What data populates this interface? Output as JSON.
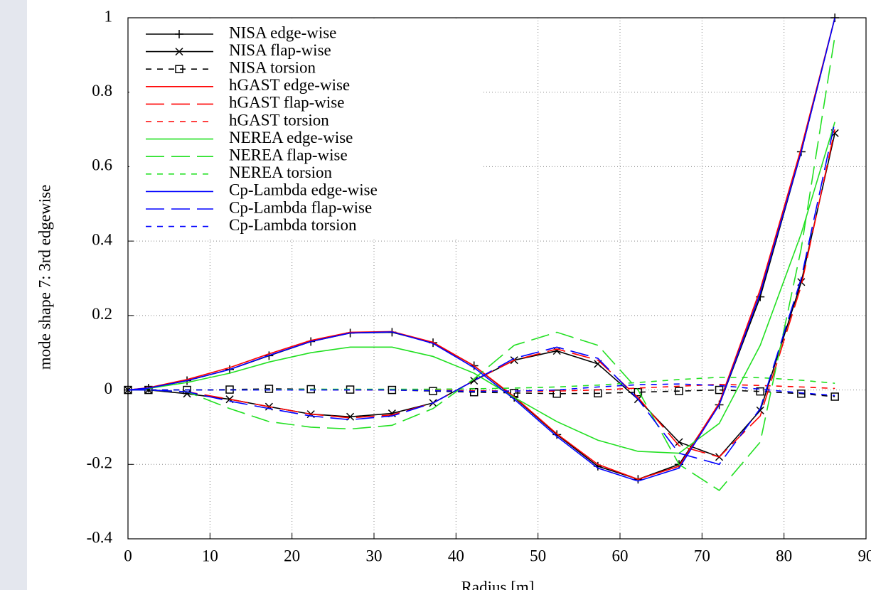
{
  "chart_data": {
    "type": "line",
    "xlabel": "Radius [m]",
    "ylabel": "mode shape 7: 3rd edgewise",
    "x": [
      0,
      2.5,
      7.2,
      12.4,
      17.2,
      22.3,
      27.1,
      32.2,
      37.2,
      42.2,
      47.1,
      52.3,
      57.3,
      62.2,
      67.2,
      72.1,
      77.1,
      82.1,
      86.2
    ],
    "xlim": [
      0,
      90
    ],
    "xticks": [
      0,
      10,
      20,
      30,
      40,
      50,
      60,
      70,
      80,
      90
    ],
    "ylim": [
      -0.4,
      1
    ],
    "yticks": [
      -0.4,
      -0.2,
      0,
      0.2,
      0.4,
      0.6,
      0.8,
      1
    ],
    "grid": true,
    "legend": "top-left",
    "series": [
      {
        "name": "NISA edge-wise",
        "color": "#000000",
        "dash": "solid",
        "marker": "plus",
        "values": [
          0,
          0.005,
          0.025,
          0.055,
          0.092,
          0.13,
          0.153,
          0.155,
          0.127,
          0.065,
          -0.02,
          -0.12,
          -0.205,
          -0.24,
          -0.2,
          -0.04,
          0.25,
          0.64,
          1.0
        ]
      },
      {
        "name": "NISA flap-wise",
        "color": "#000000",
        "dash": "solid",
        "marker": "cross",
        "values": [
          0,
          0,
          -0.01,
          -0.025,
          -0.045,
          -0.065,
          -0.072,
          -0.063,
          -0.035,
          0.025,
          0.08,
          0.105,
          0.07,
          -0.025,
          -0.14,
          -0.18,
          -0.055,
          0.29,
          0.69
        ]
      },
      {
        "name": "NISA torsion",
        "color": "#000000",
        "dash": "short",
        "marker": "square",
        "values": [
          0,
          0,
          0,
          0.001,
          0.003,
          0.002,
          0.001,
          0,
          -0.003,
          -0.006,
          -0.008,
          -0.01,
          -0.009,
          -0.006,
          -0.003,
          0,
          -0.004,
          -0.01,
          -0.018
        ]
      },
      {
        "name": "hGAST edge-wise",
        "color": "#ff0000",
        "dash": "solid",
        "values": [
          0,
          0.006,
          0.028,
          0.06,
          0.097,
          0.133,
          0.155,
          0.157,
          0.128,
          0.065,
          -0.018,
          -0.118,
          -0.2,
          -0.24,
          -0.205,
          -0.035,
          0.27,
          0.65,
          1.0
        ]
      },
      {
        "name": "hGAST flap-wise",
        "color": "#ff0000",
        "dash": "long",
        "values": [
          0,
          0,
          -0.005,
          -0.025,
          -0.045,
          -0.065,
          -0.075,
          -0.067,
          -0.035,
          0.025,
          0.08,
          0.11,
          0.08,
          -0.02,
          -0.15,
          -0.18,
          -0.07,
          0.28,
          0.7
        ]
      },
      {
        "name": "hGAST torsion",
        "color": "#ff0000",
        "dash": "short",
        "values": [
          0,
          0,
          0,
          0,
          0.001,
          0.001,
          0,
          0,
          -0.001,
          -0.002,
          -0.003,
          -0.003,
          0,
          0.005,
          0.01,
          0.015,
          0.012,
          0.008,
          0.004
        ]
      },
      {
        "name": "NEREA edge-wise",
        "color": "#22e022",
        "dash": "solid",
        "values": [
          0,
          0.004,
          0.02,
          0.045,
          0.075,
          0.1,
          0.115,
          0.115,
          0.09,
          0.045,
          -0.02,
          -0.085,
          -0.135,
          -0.165,
          -0.17,
          -0.09,
          0.12,
          0.42,
          0.72
        ]
      },
      {
        "name": "NEREA flap-wise",
        "color": "#22e022",
        "dash": "long",
        "values": [
          0,
          0,
          -0.005,
          -0.05,
          -0.085,
          -0.1,
          -0.105,
          -0.095,
          -0.05,
          0.03,
          0.12,
          0.155,
          0.12,
          0.0,
          -0.2,
          -0.27,
          -0.14,
          0.38,
          0.95
        ]
      },
      {
        "name": "NEREA torsion",
        "color": "#22e022",
        "dash": "short",
        "values": [
          0,
          0,
          0,
          0,
          0.001,
          0.002,
          0.002,
          0.002,
          0.002,
          0.003,
          0.005,
          0.008,
          0.013,
          0.02,
          0.028,
          0.034,
          0.033,
          0.026,
          0.018
        ]
      },
      {
        "name": "Cp-Lambda edge-wise",
        "color": "#0000ff",
        "dash": "solid",
        "values": [
          0,
          0.005,
          0.025,
          0.055,
          0.093,
          0.13,
          0.153,
          0.156,
          0.125,
          0.06,
          -0.025,
          -0.125,
          -0.21,
          -0.245,
          -0.21,
          -0.04,
          0.26,
          0.64,
          1.0
        ]
      },
      {
        "name": "Cp-Lambda flap-wise",
        "color": "#0000ff",
        "dash": "long",
        "values": [
          0,
          0,
          -0.005,
          -0.03,
          -0.05,
          -0.07,
          -0.08,
          -0.07,
          -0.035,
          0.025,
          0.085,
          0.115,
          0.085,
          -0.025,
          -0.17,
          -0.2,
          -0.05,
          0.3,
          0.72
        ]
      },
      {
        "name": "Cp-Lambda torsion",
        "color": "#0000ff",
        "dash": "short",
        "values": [
          0,
          0,
          0,
          0,
          0,
          0,
          0,
          0,
          -0.002,
          -0.004,
          -0.003,
          0,
          0.008,
          0.014,
          0.016,
          0.012,
          0.002,
          -0.008,
          -0.015
        ]
      }
    ]
  }
}
